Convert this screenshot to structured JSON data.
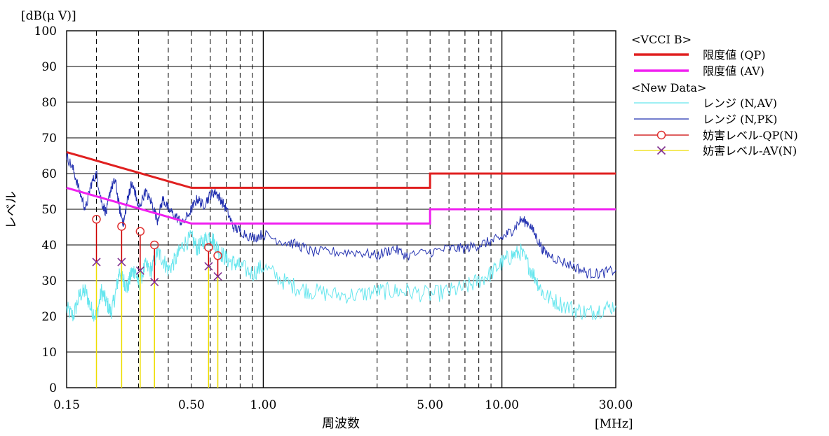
{
  "chart_data": {
    "type": "line",
    "y_unit": "[dB(μ V)]",
    "x_unit": "[MHz]",
    "xlabel": "周波数",
    "ylabel": "レベル",
    "xscale": "log",
    "xlim": [
      0.15,
      30
    ],
    "ylim": [
      0,
      100
    ],
    "y_ticks": [
      "0",
      "10",
      "20",
      "30",
      "40",
      "50",
      "60",
      "70",
      "80",
      "90",
      "100"
    ],
    "x_tick_labels": [
      {
        "value": 0.15,
        "label": "0.15"
      },
      {
        "value": 0.5,
        "label": "0.50"
      },
      {
        "value": 1,
        "label": "1.00"
      },
      {
        "value": 5,
        "label": "5.00"
      },
      {
        "value": 10,
        "label": "10.00"
      },
      {
        "value": 30,
        "label": "30.00"
      }
    ],
    "x_dashed_grid": [
      0.2,
      0.3,
      0.4,
      0.5,
      0.6,
      0.7,
      0.8,
      0.9,
      3,
      4,
      5,
      6,
      7,
      8,
      9,
      20
    ],
    "x_solid_grid": [
      1,
      10
    ],
    "grid": true,
    "legend_position": "right",
    "legend": {
      "group1_header": "<VCCI B>",
      "group2_header": "<New Data>",
      "items": [
        {
          "label": "限度値 (QP)",
          "style": "thick-line",
          "color": "#e02020"
        },
        {
          "label": "限度値 (AV)",
          "style": "thick-line",
          "color": "#f020f0"
        },
        {
          "label": "レンジ (N,AV)",
          "style": "line",
          "color": "#66e6ee"
        },
        {
          "label": "レンジ (N,PK)",
          "style": "line",
          "color": "#2230b0"
        },
        {
          "label": "妨害レベル-QP(N)",
          "style": "circle",
          "color": "#e03030",
          "line_color": "#cc0000"
        },
        {
          "label": "妨害レベル-AV(N)",
          "style": "cross",
          "color": "#803090",
          "line_color": "#eedd00"
        }
      ]
    },
    "series": [
      {
        "name": "限度値 (QP)",
        "color": "#e02020",
        "x": [
          0.15,
          0.5,
          0.5,
          5,
          5,
          30
        ],
        "y": [
          66,
          56,
          56,
          56,
          60,
          60
        ]
      },
      {
        "name": "限度値 (AV)",
        "color": "#f020f0",
        "x": [
          0.15,
          0.5,
          0.5,
          5,
          5,
          30
        ],
        "y": [
          56,
          46,
          46,
          46,
          50,
          50
        ]
      },
      {
        "name": "レンジ (N,PK)",
        "color": "#2230b0",
        "x": [
          0.15,
          0.16,
          0.17,
          0.18,
          0.19,
          0.2,
          0.21,
          0.22,
          0.23,
          0.24,
          0.25,
          0.26,
          0.27,
          0.28,
          0.29,
          0.3,
          0.32,
          0.34,
          0.36,
          0.38,
          0.4,
          0.43,
          0.46,
          0.5,
          0.53,
          0.56,
          0.6,
          0.63,
          0.66,
          0.7,
          0.75,
          0.8,
          0.9,
          1.0,
          1.2,
          1.4,
          1.6,
          2.0,
          2.5,
          3.0,
          3.5,
          4.0,
          5.0,
          6.0,
          7.0,
          8.0,
          9.0,
          10.0,
          11.0,
          12.0,
          13.0,
          14.0,
          15.0,
          17.0,
          20.0,
          23.0,
          26.0,
          30.0
        ],
        "y": [
          65,
          61,
          55,
          50,
          57,
          60,
          52,
          49,
          56,
          58,
          50,
          46,
          53,
          57,
          55,
          50,
          55,
          52,
          47,
          53,
          50,
          48,
          46,
          50,
          53,
          51,
          54,
          55,
          53,
          50,
          45,
          44,
          42,
          43,
          41,
          40,
          38,
          38,
          38,
          37,
          39,
          37,
          38,
          39,
          39,
          40,
          41,
          42,
          44,
          47,
          46,
          42,
          38,
          36,
          34,
          32,
          32,
          33
        ]
      },
      {
        "name": "レンジ (N,AV)",
        "color": "#66e6ee",
        "x": [
          0.15,
          0.16,
          0.17,
          0.18,
          0.19,
          0.2,
          0.21,
          0.22,
          0.23,
          0.24,
          0.25,
          0.26,
          0.27,
          0.28,
          0.29,
          0.3,
          0.32,
          0.34,
          0.36,
          0.38,
          0.4,
          0.43,
          0.46,
          0.5,
          0.53,
          0.56,
          0.6,
          0.63,
          0.66,
          0.7,
          0.75,
          0.8,
          0.9,
          1.0,
          1.2,
          1.4,
          1.6,
          2.0,
          2.5,
          3.0,
          3.5,
          4.0,
          5.0,
          6.0,
          7.0,
          8.0,
          9.0,
          10.0,
          11.0,
          12.0,
          13.0,
          14.0,
          15.0,
          17.0,
          20.0,
          23.0,
          26.0,
          30.0
        ],
        "y": [
          22,
          20,
          26,
          27,
          22,
          20,
          27,
          24,
          21,
          26,
          33,
          30,
          28,
          32,
          33,
          29,
          34,
          33,
          38,
          36,
          33,
          36,
          40,
          42,
          39,
          41,
          43,
          40,
          38,
          36,
          35,
          34,
          32,
          34,
          30,
          28,
          27,
          26,
          26,
          27,
          27,
          27,
          26,
          27,
          28,
          30,
          32,
          35,
          37,
          38,
          34,
          30,
          26,
          24,
          22,
          21,
          22,
          23
        ]
      }
    ],
    "markers_qp": {
      "name": "妨害レベル-QP(N)",
      "x": [
        0.2,
        0.255,
        0.305,
        0.35,
        0.59,
        0.645
      ],
      "y": [
        47.2,
        45.2,
        43.8,
        40.0,
        39.3,
        37.0
      ]
    },
    "markers_av": {
      "name": "妨害レベル-AV(N)",
      "x": [
        0.2,
        0.255,
        0.305,
        0.35,
        0.59,
        0.645
      ],
      "y": [
        35.2,
        35.2,
        32.8,
        29.6,
        34.0,
        31.2
      ]
    }
  }
}
